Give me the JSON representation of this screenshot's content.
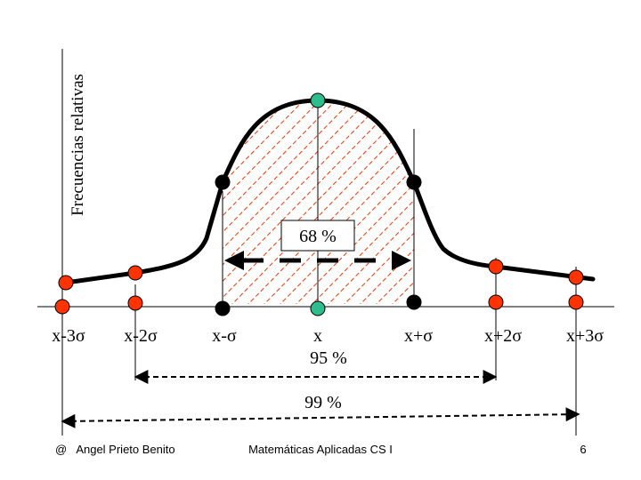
{
  "y_axis_label": "Frecuencias relativas",
  "x_labels": [
    "x-3σ",
    "x-2σ",
    "x-σ",
    "x",
    "x+σ",
    "x+2σ",
    "x+3σ"
  ],
  "percent_68": "68 %",
  "percent_95": "95 %",
  "percent_99": "99 %",
  "footer": {
    "author": "@   Angel Prieto Benito",
    "course": "Matemáticas Aplicadas CS I",
    "page": "6"
  },
  "colors": {
    "mean_marker": "#2ebd8c",
    "sigma1_marker": "#000000",
    "sigma23_marker": "#ff3300",
    "hatch": "#ff3300"
  }
}
